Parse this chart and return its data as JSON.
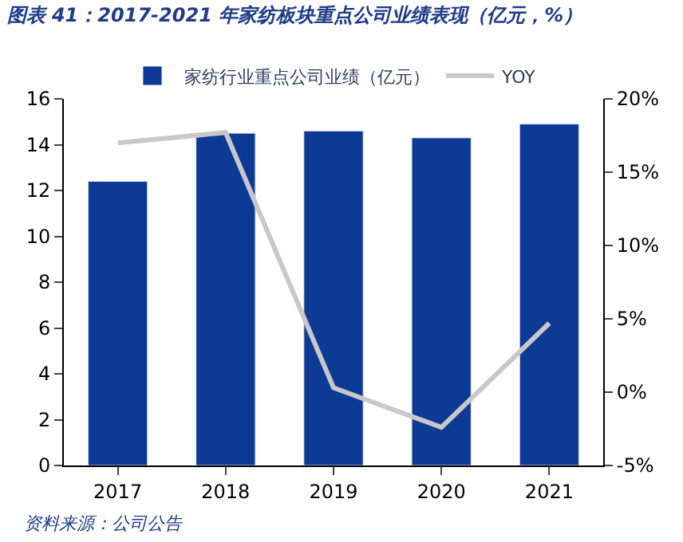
{
  "chart_data": {
    "type": "bar",
    "title": "图表 41：2017-2021 年家纺板块重点公司业绩表现（亿元，%）",
    "categories": [
      "2017",
      "2018",
      "2019",
      "2020",
      "2021"
    ],
    "series": [
      {
        "name": "家纺行业重点公司业绩（亿元）",
        "color": "#0d3a94",
        "values": [
          12.4,
          14.5,
          14.6,
          14.3,
          14.9
        ]
      },
      {
        "name": "YOY",
        "type": "line",
        "axis": "y2",
        "color": "#c8c8c8",
        "values": [
          17.0,
          17.7,
          0.3,
          -2.4,
          4.7
        ]
      }
    ],
    "ylim": [
      0,
      16
    ],
    "yticks": [
      0,
      2,
      4,
      6,
      8,
      10,
      12,
      14,
      16
    ],
    "y2lim": [
      -5,
      20
    ],
    "y2ticks": [
      {
        "value": -5,
        "label": "-5%"
      },
      {
        "value": 0,
        "label": "0%"
      },
      {
        "value": 5,
        "label": "5%"
      },
      {
        "value": 10,
        "label": "10%"
      },
      {
        "value": 15,
        "label": "15%"
      },
      {
        "value": 20,
        "label": "20%"
      }
    ],
    "grid": false,
    "legend": "top",
    "marker": "none",
    "annotations": [
      "资料来源：公司公告"
    ]
  }
}
